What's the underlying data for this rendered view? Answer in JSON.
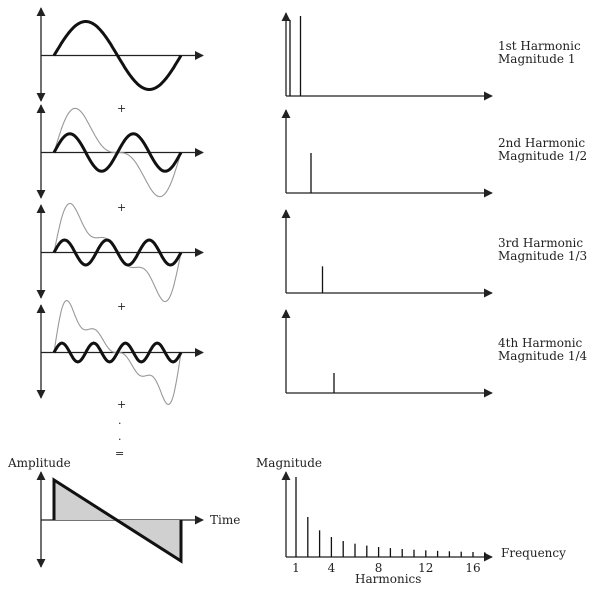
{
  "rows": [
    {
      "label_line1": "1st Harmonic",
      "label_line2": "Magnitude 1",
      "harmonic": 1,
      "magnitude": 1.0
    },
    {
      "label_line1": "2nd Harmonic",
      "label_line2": "Magnitude 1/2",
      "harmonic": 2,
      "magnitude": 0.5
    },
    {
      "label_line1": "3rd Harmonic",
      "label_line2": "Magnitude 1/3",
      "harmonic": 3,
      "magnitude": 0.3333
    },
    {
      "label_line1": "4th Harmonic",
      "label_line2": "Magnitude 1/4",
      "harmonic": 4,
      "magnitude": 0.25
    }
  ],
  "operators": {
    "plus": "+",
    "dot": ".",
    "equals": "="
  },
  "result": {
    "time_axis": {
      "y_label": "Amplitude",
      "x_label": "Time"
    },
    "spectrum": {
      "y_label": "Magnitude",
      "x_label": "Frequency",
      "x_caption": "Harmonics",
      "ticks": [
        "1",
        "4",
        "8",
        "12",
        "16"
      ],
      "harmonic_count": 17
    }
  }
}
